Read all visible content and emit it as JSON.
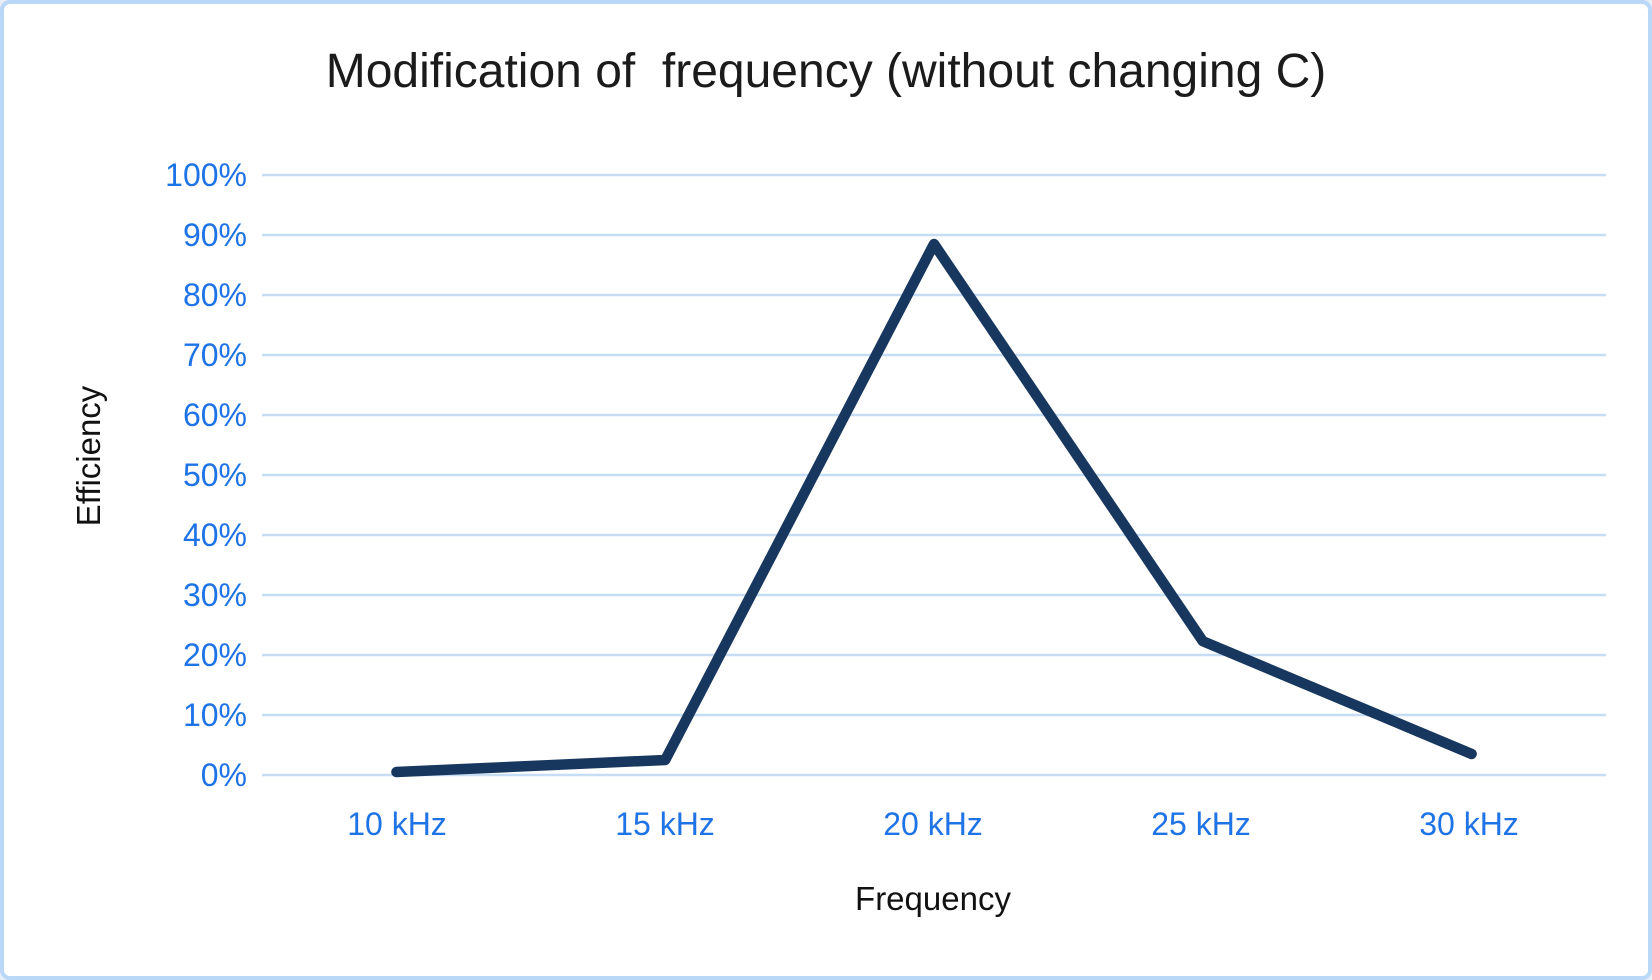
{
  "title": "Modification of  frequency (without changing C)",
  "colors": {
    "line": "#17375E",
    "grid": "#c6ddf6",
    "tick_label": "#1e73e6",
    "frame_border": "#b9d7f6",
    "title_text": "#1b1b1b",
    "background": "#ffffff"
  },
  "chart_data": {
    "type": "line",
    "title": "Modification of  frequency (without changing C)",
    "xlabel": "Frequency",
    "ylabel": "Efficiency",
    "categories": [
      "10 kHz",
      "15 kHz",
      "20 kHz",
      "25 kHz",
      "30 kHz"
    ],
    "values": [
      0.5,
      2.5,
      88.5,
      22.3,
      3.5
    ],
    "series": [
      {
        "name": "Efficiency",
        "values": [
          0.5,
          2.5,
          88.5,
          22.3,
          3.5
        ]
      }
    ],
    "ylim": [
      0,
      100
    ],
    "yticks": [
      "100%",
      "90%",
      "80%",
      "70%",
      "60%",
      "50%",
      "40%",
      "30%",
      "20%",
      "10%",
      "0%"
    ],
    "grid": "horizontal",
    "legend": "none",
    "line_style": "solid, thick, rounded joins, no markers"
  }
}
